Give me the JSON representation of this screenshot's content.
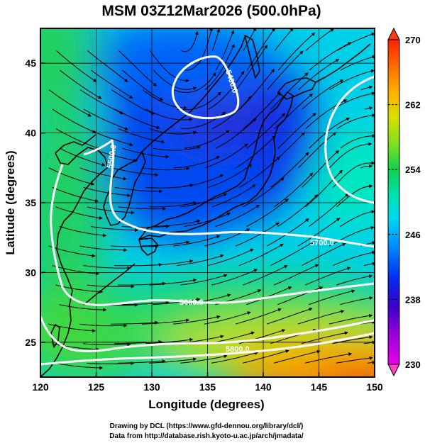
{
  "map": {
    "title": "MSM 03Z12Mar2026 (500.0hPa)",
    "x_axis": {
      "label": "Longitude (degrees)",
      "range": [
        120,
        150
      ],
      "ticks": [
        120,
        125,
        130,
        135,
        140,
        145,
        150
      ]
    },
    "y_axis": {
      "label": "Latitude  (degrees)",
      "range": [
        22.5,
        47.5
      ],
      "ticks": [
        25,
        30,
        35,
        40,
        45
      ]
    },
    "colorbar": {
      "range": [
        230,
        270
      ],
      "tick_labels": [
        "270",
        "262",
        "254",
        "246",
        "238",
        "230"
      ],
      "colors": [
        "#e800e8",
        "#9800d8",
        "#3a00c8",
        "#0030f0",
        "#0088ff",
        "#00d8f0",
        "#00e0b0",
        "#10d050",
        "#80e020",
        "#d8e000",
        "#ffb000",
        "#ff6a00",
        "#ff2000"
      ]
    },
    "contours": [
      {
        "label": "5400.0"
      },
      {
        "label": "5500.0"
      },
      {
        "label": "5600.0"
      },
      {
        "label": "5700.0"
      },
      {
        "label": "5800.0"
      }
    ],
    "streamlines": true,
    "grid": true,
    "credits": {
      "line1": "Drawing by DCL (https://www.gfd-dennou.org/library/dcl/)",
      "line2": "Data from http://database.rish.kyoto-u.ac.jp/arch/jmadata/"
    }
  }
}
